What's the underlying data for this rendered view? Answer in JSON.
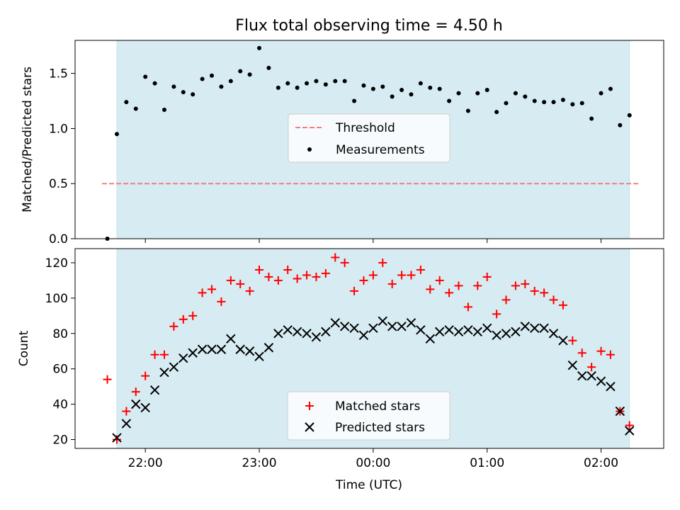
{
  "chart_data": [
    {
      "type": "scatter",
      "title": "Flux total observing time = 4.50 h",
      "xlabel": "",
      "ylabel": "Matched/Predicted stars",
      "ylim": [
        0,
        1.8
      ],
      "yticks": [
        0.0,
        0.5,
        1.0,
        1.5
      ],
      "ytick_labels": [
        "0.0",
        "0.5",
        "1.0",
        "1.5"
      ],
      "xlim": [
        "21:23",
        "02:33"
      ],
      "shaded_range": [
        "21:45",
        "02:15"
      ],
      "shade_color": "#add8e6",
      "threshold": {
        "name": "Threshold",
        "y": 0.5,
        "color": "#f08080",
        "style": "dashed"
      },
      "legend": {
        "position": "center-right",
        "entries": [
          "Threshold",
          "Measurements"
        ]
      },
      "series": [
        {
          "name": "Measurements",
          "marker": "dot",
          "color": "#000000",
          "x": [
            "21:40",
            "21:45",
            "21:50",
            "21:55",
            "22:00",
            "22:05",
            "22:10",
            "22:15",
            "22:20",
            "22:25",
            "22:30",
            "22:35",
            "22:40",
            "22:45",
            "22:50",
            "22:55",
            "23:00",
            "23:05",
            "23:10",
            "23:15",
            "23:20",
            "23:25",
            "23:30",
            "23:35",
            "23:40",
            "23:45",
            "23:50",
            "23:55",
            "00:00",
            "00:05",
            "00:10",
            "00:15",
            "00:20",
            "00:25",
            "00:30",
            "00:35",
            "00:40",
            "00:45",
            "00:50",
            "00:55",
            "01:00",
            "01:05",
            "01:10",
            "01:15",
            "01:20",
            "01:25",
            "01:30",
            "01:35",
            "01:40",
            "01:45",
            "01:50",
            "01:55",
            "02:00",
            "02:05",
            "02:10",
            "02:15"
          ],
          "y": [
            0.0,
            0.95,
            1.24,
            1.18,
            1.47,
            1.41,
            1.17,
            1.38,
            1.33,
            1.31,
            1.45,
            1.48,
            1.38,
            1.43,
            1.52,
            1.49,
            1.73,
            1.55,
            1.37,
            1.41,
            1.37,
            1.41,
            1.43,
            1.4,
            1.43,
            1.43,
            1.25,
            1.39,
            1.36,
            1.38,
            1.29,
            1.35,
            1.31,
            1.41,
            1.37,
            1.36,
            1.25,
            1.32,
            1.16,
            1.32,
            1.35,
            1.15,
            1.23,
            1.32,
            1.29,
            1.25,
            1.24,
            1.24,
            1.26,
            1.22,
            1.23,
            1.09,
            1.32,
            1.36,
            1.03,
            1.12
          ]
        }
      ]
    },
    {
      "type": "scatter",
      "xlabel": "Time (UTC)",
      "ylabel": "Count",
      "ylim": [
        15,
        128
      ],
      "yticks": [
        20,
        40,
        60,
        80,
        100,
        120
      ],
      "ytick_labels": [
        "20",
        "40",
        "60",
        "80",
        "100",
        "120"
      ],
      "xlim": [
        "21:23",
        "02:33"
      ],
      "xticks": [
        "22:00",
        "23:00",
        "00:00",
        "01:00",
        "02:00"
      ],
      "xtick_labels": [
        "22:00",
        "23:00",
        "00:00",
        "01:00",
        "02:00"
      ],
      "shaded_range": [
        "21:45",
        "02:15"
      ],
      "shade_color": "#add8e6",
      "legend": {
        "position": "bottom-center",
        "entries": [
          "Matched stars",
          "Predicted stars"
        ]
      },
      "series": [
        {
          "name": "Matched stars",
          "marker": "plus",
          "color": "#ff0000",
          "x": [
            "21:40",
            "21:45",
            "21:50",
            "21:55",
            "22:00",
            "22:05",
            "22:10",
            "22:15",
            "22:20",
            "22:25",
            "22:30",
            "22:35",
            "22:40",
            "22:45",
            "22:50",
            "22:55",
            "23:00",
            "23:05",
            "23:10",
            "23:15",
            "23:20",
            "23:25",
            "23:30",
            "23:35",
            "23:40",
            "23:45",
            "23:50",
            "23:55",
            "00:00",
            "00:05",
            "00:10",
            "00:15",
            "00:20",
            "00:25",
            "00:30",
            "00:35",
            "00:40",
            "00:45",
            "00:50",
            "00:55",
            "01:00",
            "01:05",
            "01:10",
            "01:15",
            "01:20",
            "01:25",
            "01:30",
            "01:35",
            "01:40",
            "01:45",
            "01:50",
            "01:55",
            "02:00",
            "02:05",
            "02:10",
            "02:15"
          ],
          "y": [
            54,
            20,
            36,
            47,
            56,
            68,
            68,
            84,
            88,
            90,
            103,
            105,
            98,
            110,
            108,
            104,
            116,
            112,
            110,
            116,
            111,
            113,
            112,
            114,
            123,
            120,
            104,
            110,
            113,
            120,
            108,
            113,
            113,
            116,
            105,
            110,
            103,
            107,
            95,
            107,
            112,
            91,
            99,
            107,
            108,
            104,
            103,
            99,
            96,
            76,
            69,
            61,
            70,
            68,
            36,
            28
          ]
        },
        {
          "name": "Predicted stars",
          "marker": "x",
          "color": "#000000",
          "x": [
            "21:45",
            "21:50",
            "21:55",
            "22:00",
            "22:05",
            "22:10",
            "22:15",
            "22:20",
            "22:25",
            "22:30",
            "22:35",
            "22:40",
            "22:45",
            "22:50",
            "22:55",
            "23:00",
            "23:05",
            "23:10",
            "23:15",
            "23:20",
            "23:25",
            "23:30",
            "23:35",
            "23:40",
            "23:45",
            "23:50",
            "23:55",
            "00:00",
            "00:05",
            "00:10",
            "00:15",
            "00:20",
            "00:25",
            "00:30",
            "00:35",
            "00:40",
            "00:45",
            "00:50",
            "00:55",
            "01:00",
            "01:05",
            "01:10",
            "01:15",
            "01:20",
            "01:25",
            "01:30",
            "01:35",
            "01:40",
            "01:45",
            "01:50",
            "01:55",
            "02:00",
            "02:05",
            "02:10",
            "02:15"
          ],
          "y": [
            21,
            29,
            40,
            38,
            48,
            58,
            61,
            66,
            69,
            71,
            71,
            71,
            77,
            71,
            70,
            67,
            72,
            80,
            82,
            81,
            80,
            78,
            81,
            86,
            84,
            83,
            79,
            83,
            87,
            84,
            84,
            86,
            82,
            77,
            81,
            82,
            81,
            82,
            81,
            83,
            79,
            80,
            81,
            84,
            83,
            83,
            80,
            76,
            62,
            56,
            56,
            53,
            50,
            36,
            25
          ]
        }
      ]
    }
  ]
}
